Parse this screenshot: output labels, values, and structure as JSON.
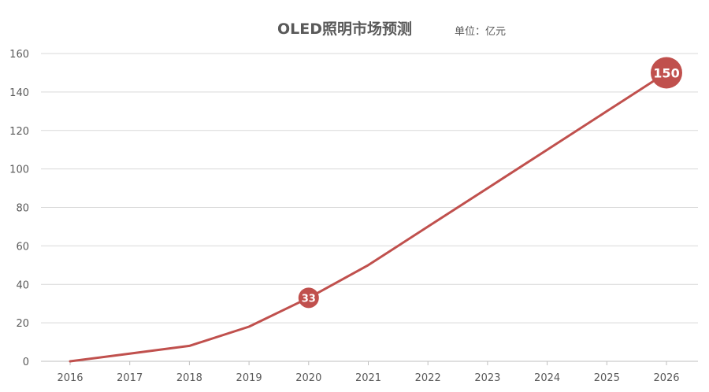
{
  "chart_data": {
    "type": "line",
    "title": "OLED照明市场预测",
    "unit_label": "单位：亿元",
    "x": [
      "2016",
      "2017",
      "2018",
      "2019",
      "2020",
      "2021",
      "2022",
      "2023",
      "2024",
      "2025",
      "2026"
    ],
    "series": [
      {
        "values": [
          0,
          4,
          8,
          18,
          33,
          50,
          70,
          90,
          110,
          130,
          150
        ],
        "color": "#c0504d"
      }
    ],
    "ylim": [
      0,
      160
    ],
    "yticks": [
      0,
      20,
      40,
      60,
      80,
      100,
      120,
      140,
      160
    ],
    "grid": true,
    "legend": "none",
    "annotations": [
      {
        "x": "2020",
        "value": 33,
        "label": "33"
      },
      {
        "x": "2026",
        "value": 150,
        "label": "150"
      }
    ]
  }
}
